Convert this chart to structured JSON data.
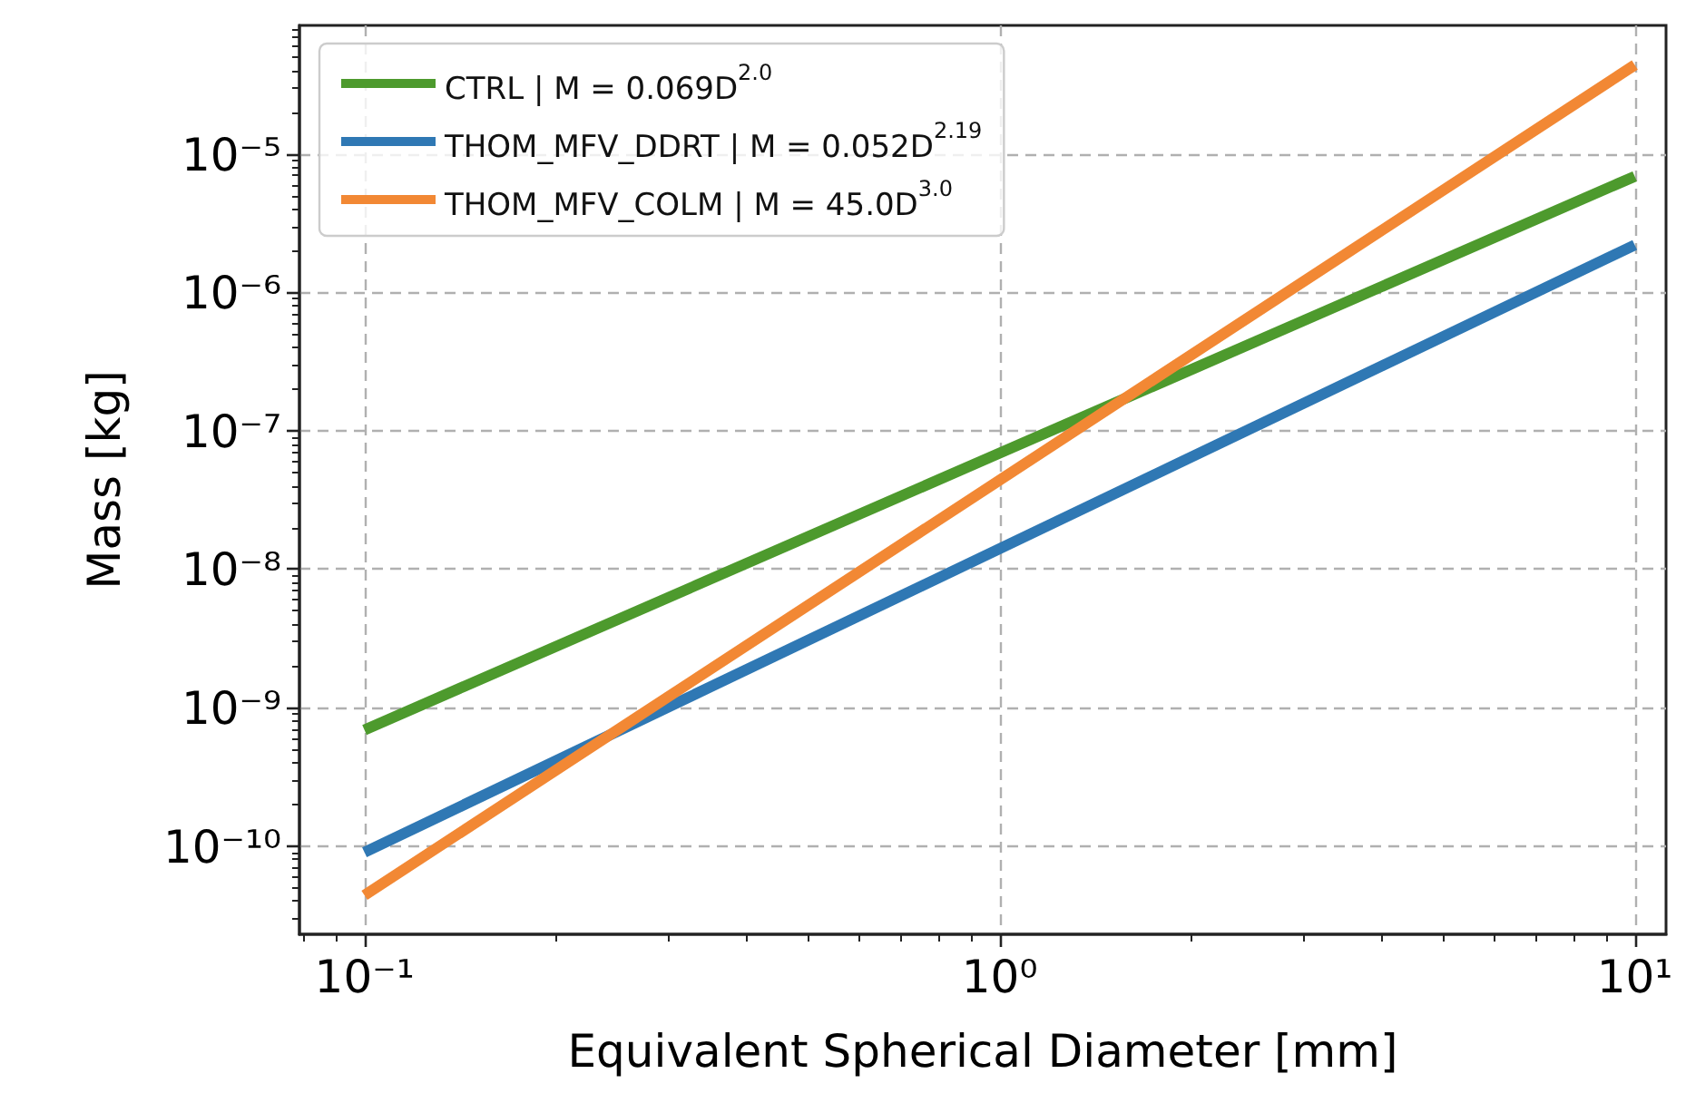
{
  "chart_data": {
    "type": "line",
    "xlabel": "Equivalent Spherical Diameter [mm]",
    "ylabel": "Mass [kg]",
    "x": [
      0.1,
      10
    ],
    "series": [
      {
        "name": "CTRL | M = 0.069D$^{2.0}$",
        "color": "#4d9a2d",
        "values": [
          6.9e-10,
          6.9e-06
        ]
      },
      {
        "name": "THOM_MFV_DDRT | M = 0.052D$^{2.19}$",
        "color": "#2f78b4",
        "values": [
          9e-11,
          2.2e-06
        ]
      },
      {
        "name": "THOM_MFV_COLM | M = 45.0D$^{3.0}$",
        "color": "#f28834",
        "values": [
          4.4e-11,
          4.4e-05
        ]
      }
    ],
    "log": "xy",
    "xlim": [
      0.079,
      11.2
    ],
    "ylim": [
      2.3e-11,
      8.5e-05
    ],
    "xticks": [
      {
        "value": 0.08,
        "label": null
      },
      {
        "value": 0.09,
        "label": null
      },
      {
        "value": 0.1,
        "label": "10⁻¹"
      },
      {
        "value": 0.2,
        "label": null
      },
      {
        "value": 0.3,
        "label": null
      },
      {
        "value": 0.4,
        "label": null
      },
      {
        "value": 0.5,
        "label": null
      },
      {
        "value": 0.6,
        "label": null
      },
      {
        "value": 0.7,
        "label": null
      },
      {
        "value": 0.8,
        "label": null
      },
      {
        "value": 0.9,
        "label": null
      },
      {
        "value": 1,
        "label": "10⁰"
      },
      {
        "value": 2,
        "label": null
      },
      {
        "value": 3,
        "label": null
      },
      {
        "value": 4,
        "label": null
      },
      {
        "value": 5,
        "label": null
      },
      {
        "value": 6,
        "label": null
      },
      {
        "value": 7,
        "label": null
      },
      {
        "value": 8,
        "label": null
      },
      {
        "value": 9,
        "label": null
      },
      {
        "value": 10,
        "label": "10¹"
      }
    ],
    "yticks": [
      {
        "value": 3e-11,
        "label": null
      },
      {
        "value": 4e-11,
        "label": null
      },
      {
        "value": 5e-11,
        "label": null
      },
      {
        "value": 6e-11,
        "label": null
      },
      {
        "value": 7e-11,
        "label": null
      },
      {
        "value": 8e-11,
        "label": null
      },
      {
        "value": 9e-11,
        "label": null
      },
      {
        "value": 1e-10,
        "label": "10⁻¹⁰"
      },
      {
        "value": 2e-10,
        "label": null
      },
      {
        "value": 3e-10,
        "label": null
      },
      {
        "value": 4e-10,
        "label": null
      },
      {
        "value": 5e-10,
        "label": null
      },
      {
        "value": 6e-10,
        "label": null
      },
      {
        "value": 7e-10,
        "label": null
      },
      {
        "value": 8e-10,
        "label": null
      },
      {
        "value": 9e-10,
        "label": null
      },
      {
        "value": 1e-09,
        "label": "10⁻⁹"
      },
      {
        "value": 2e-09,
        "label": null
      },
      {
        "value": 3e-09,
        "label": null
      },
      {
        "value": 4e-09,
        "label": null
      },
      {
        "value": 5e-09,
        "label": null
      },
      {
        "value": 6e-09,
        "label": null
      },
      {
        "value": 7e-09,
        "label": null
      },
      {
        "value": 8e-09,
        "label": null
      },
      {
        "value": 9e-09,
        "label": null
      },
      {
        "value": 1e-08,
        "label": "10⁻⁸"
      },
      {
        "value": 2e-08,
        "label": null
      },
      {
        "value": 3e-08,
        "label": null
      },
      {
        "value": 4e-08,
        "label": null
      },
      {
        "value": 5e-08,
        "label": null
      },
      {
        "value": 6e-08,
        "label": null
      },
      {
        "value": 7e-08,
        "label": null
      },
      {
        "value": 8e-08,
        "label": null
      },
      {
        "value": 9e-08,
        "label": null
      },
      {
        "value": 1e-07,
        "label": "10⁻⁷"
      },
      {
        "value": 2e-07,
        "label": null
      },
      {
        "value": 3e-07,
        "label": null
      },
      {
        "value": 4e-07,
        "label": null
      },
      {
        "value": 5e-07,
        "label": null
      },
      {
        "value": 6e-07,
        "label": null
      },
      {
        "value": 7e-07,
        "label": null
      },
      {
        "value": 8e-07,
        "label": null
      },
      {
        "value": 9e-07,
        "label": null
      },
      {
        "value": 1e-06,
        "label": "10⁻⁶"
      },
      {
        "value": 2e-06,
        "label": null
      },
      {
        "value": 3e-06,
        "label": null
      },
      {
        "value": 4e-06,
        "label": null
      },
      {
        "value": 5e-06,
        "label": null
      },
      {
        "value": 6e-06,
        "label": null
      },
      {
        "value": 7e-06,
        "label": null
      },
      {
        "value": 8e-06,
        "label": null
      },
      {
        "value": 9e-06,
        "label": null
      },
      {
        "value": 1e-05,
        "label": "10⁻⁵"
      },
      {
        "value": 2e-05,
        "label": null
      },
      {
        "value": 3e-05,
        "label": null
      },
      {
        "value": 4e-05,
        "label": null
      },
      {
        "value": 5e-05,
        "label": null
      },
      {
        "value": 6e-05,
        "label": null
      },
      {
        "value": 7e-05,
        "label": null
      },
      {
        "value": 8e-05,
        "label": null
      }
    ],
    "grid": true,
    "legend": "top left",
    "marker": "none",
    "line_style": "solid"
  }
}
